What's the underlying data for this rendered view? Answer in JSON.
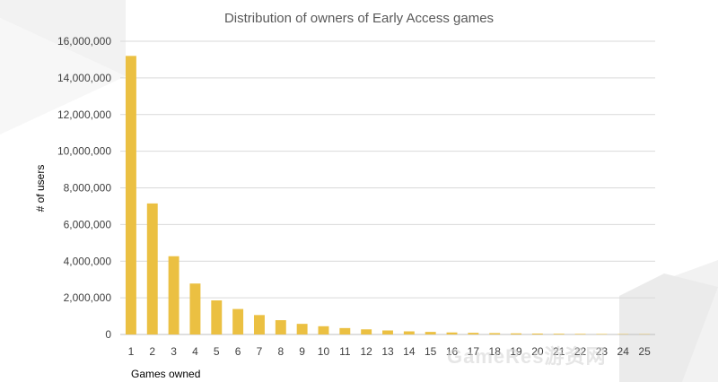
{
  "watermark": "GameRes游资网",
  "chart_data": {
    "type": "bar",
    "title": "Distribution of owners of Early Access games",
    "xlabel": "Games owned",
    "ylabel": "# of users",
    "categories": [
      "1",
      "2",
      "3",
      "4",
      "5",
      "6",
      "7",
      "8",
      "9",
      "10",
      "11",
      "12",
      "13",
      "14",
      "15",
      "16",
      "17",
      "18",
      "19",
      "20",
      "21",
      "22",
      "23",
      "24",
      "25"
    ],
    "values": [
      15200000,
      7150000,
      4270000,
      2780000,
      1860000,
      1390000,
      1060000,
      780000,
      580000,
      450000,
      350000,
      280000,
      220000,
      170000,
      140000,
      110000,
      90000,
      75000,
      60000,
      50000,
      40000,
      33000,
      27000,
      22000,
      18000
    ],
    "ylim": [
      0,
      16000000
    ],
    "yticks": [
      "0",
      "2,000,000",
      "4,000,000",
      "6,000,000",
      "8,000,000",
      "10,000,000",
      "12,000,000",
      "14,000,000",
      "16,000,000"
    ],
    "grid": true,
    "colors": {
      "bar": "#EBC042",
      "grid": "#D9D9D9",
      "axis": "#BFBFBF"
    }
  }
}
